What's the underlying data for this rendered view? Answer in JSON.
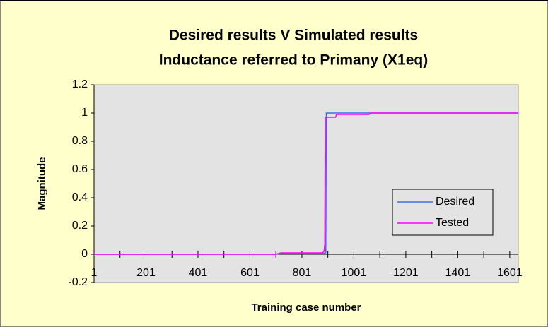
{
  "chart_data": {
    "type": "line",
    "title": [
      "Desired results V Simulated results",
      "Inductance referred to Primany (X1eq)"
    ],
    "y_label": "Magnitude",
    "x_label": "Training case number",
    "xlim": [
      1,
      1634
    ],
    "ylim": [
      -0.2,
      1.2
    ],
    "xticks": [
      1,
      201,
      401,
      601,
      801,
      1001,
      1201,
      1401,
      1601
    ],
    "xminor_ticks": [
      101,
      301,
      501,
      701,
      901,
      1101,
      1301,
      1501
    ],
    "yticks": [
      -0.2,
      0,
      0.2,
      0.4,
      0.6,
      0.8,
      1,
      1.2
    ],
    "legend": "right",
    "series": [
      {
        "name": "Desired",
        "color": "#3a6cf0",
        "x": [
          1,
          700,
          720,
          880,
          893,
          895,
          1634
        ],
        "values": [
          0,
          0,
          0.005,
          0.005,
          0.01,
          1,
          1
        ]
      },
      {
        "name": "Tested",
        "color": "#ff00ff",
        "x": [
          1,
          700,
          720,
          880,
          886,
          889,
          891,
          930,
          935,
          1060,
          1065,
          1634
        ],
        "values": [
          0,
          0,
          0.01,
          0.01,
          0.02,
          0.07,
          0.97,
          0.97,
          0.99,
          0.99,
          1,
          1
        ]
      }
    ]
  }
}
